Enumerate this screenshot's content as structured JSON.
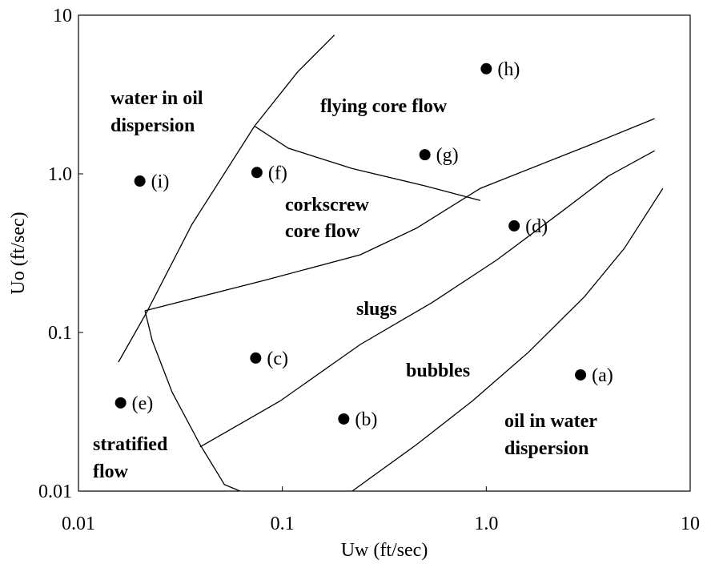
{
  "chart_data": {
    "type": "scatter",
    "xlabel": "Uw (ft/sec)",
    "ylabel": "Uo (ft/sec)",
    "xscale": "log",
    "yscale": "log",
    "xlim": [
      0.01,
      10
    ],
    "ylim": [
      0.01,
      10
    ],
    "xticks": [
      0.01,
      0.1,
      {
        "value": 1,
        "label": "1.0"
      },
      10
    ],
    "yticks": [
      0.01,
      0.1,
      {
        "value": 1,
        "label": "1.0"
      },
      10
    ],
    "color": "#000000",
    "labels": [
      "(a)",
      "(b)",
      "(c)",
      "(d)",
      "(e)",
      "(f)",
      "(g)",
      "(h)",
      "(i)"
    ],
    "x": [
      2.9,
      0.2,
      0.074,
      1.37,
      0.0161,
      0.075,
      0.5,
      1.0,
      0.02
    ],
    "values": [
      0.054,
      0.0285,
      0.069,
      0.47,
      0.036,
      1.02,
      1.32,
      4.6,
      0.9
    ],
    "boundaries": [
      {
        "x": [
          0.0157,
          0.0216,
          0.036,
          0.073,
          0.119,
          0.18
        ],
        "values": [
          0.065,
          0.134,
          0.48,
          2.0,
          4.4,
          7.5
        ]
      },
      {
        "x": [
          0.0212,
          0.023,
          0.0288,
          0.0395,
          0.052,
          0.062
        ],
        "values": [
          0.137,
          0.089,
          0.042,
          0.0196,
          0.011,
          0.01
        ]
      },
      {
        "x": [
          0.0212,
          0.0815,
          0.241,
          0.454,
          0.935,
          3.3,
          6.7
        ],
        "values": [
          0.137,
          0.213,
          0.309,
          0.454,
          0.81,
          1.54,
          2.23
        ]
      },
      {
        "x": [
          0.073,
          0.107,
          0.22,
          0.5,
          0.935
        ],
        "values": [
          2.0,
          1.45,
          1.08,
          0.84,
          0.68
        ]
      },
      {
        "x": [
          0.0395,
          0.0975,
          0.241,
          0.54,
          1.12,
          2.31,
          3.98,
          6.7
        ],
        "values": [
          0.019,
          0.037,
          0.084,
          0.154,
          0.285,
          0.57,
          0.97,
          1.4
        ]
      },
      {
        "x": [
          0.22,
          0.454,
          0.855,
          1.61,
          3.03,
          4.76,
          7.35
        ],
        "values": [
          0.01,
          0.0196,
          0.037,
          0.075,
          0.168,
          0.34,
          0.81
        ]
      }
    ],
    "regions": [
      [
        "water in oil",
        "dispersion"
      ],
      [
        "flying core flow"
      ],
      [
        "corkscrew",
        "core flow"
      ],
      [
        "slugs"
      ],
      [
        "bubbles"
      ],
      [
        "stratified",
        "flow"
      ],
      [
        "oil in water",
        "dispersion"
      ]
    ]
  }
}
